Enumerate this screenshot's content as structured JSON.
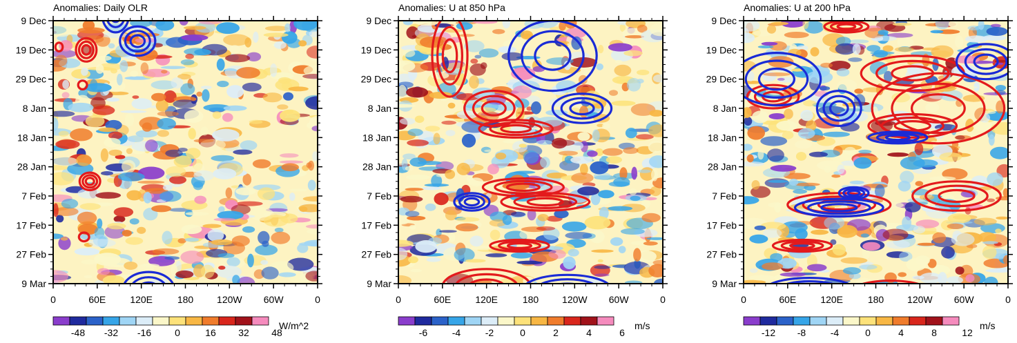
{
  "palette": [
    "#8a3dcc",
    "#1f2a9e",
    "#2b62c9",
    "#36a5e8",
    "#9fd5f5",
    "#dcedf8",
    "#fbf7c9",
    "#fde27a",
    "#f8b744",
    "#f07c2c",
    "#d9261c",
    "#a1121a",
    "#f58bbd"
  ],
  "contour_colors": {
    "positive": "#e31a1c",
    "negative": "#1a2bd6"
  },
  "chart_data": [
    {
      "type": "heatmap",
      "title": "Anomalies: Daily OLR",
      "x_ticks": [
        "0",
        "60E",
        "120E",
        "180",
        "120W",
        "60W",
        "0"
      ],
      "y_ticks": [
        "9 Dec",
        "19 Dec",
        "29 Dec",
        "8 Jan",
        "18 Jan",
        "28 Jan",
        "7 Feb",
        "17 Feb",
        "27 Feb",
        "9 Mar"
      ],
      "colorbar": {
        "units": "W/m^2",
        "labels": [
          "-48",
          "-32",
          "-16",
          "0",
          "16",
          "32",
          "48"
        ]
      },
      "field_seed": 11,
      "positive_contours": [
        {
          "lon": 45,
          "day": 10,
          "dlon": 14,
          "dday": 4
        },
        {
          "lon": 8,
          "day": 9,
          "dlon": 5,
          "dday": 1.5
        },
        {
          "lon": 40,
          "day": 22,
          "dlon": 6,
          "dday": 1.5
        },
        {
          "lon": 50,
          "day": 55,
          "dlon": 14,
          "dday": 3
        },
        {
          "lon": 42,
          "day": 74,
          "dlon": 7,
          "dday": 1.5
        }
      ],
      "negative_contours": [
        {
          "lon": 85,
          "day": -2,
          "dlon": 18,
          "dday": 6
        },
        {
          "lon": 115,
          "day": 7,
          "dlon": 24,
          "dday": 5
        },
        {
          "lon": 130,
          "day": 92,
          "dlon": 35,
          "dday": 6
        }
      ]
    },
    {
      "type": "heatmap",
      "title": "Anomalies: U at 850 hPa",
      "x_ticks": [
        "0",
        "60E",
        "120E",
        "180",
        "120W",
        "60W",
        "0"
      ],
      "y_ticks": [
        "9 Dec",
        "19 Dec",
        "29 Dec",
        "8 Jan",
        "18 Jan",
        "28 Jan",
        "7 Feb",
        "17 Feb",
        "27 Feb",
        "9 Mar"
      ],
      "colorbar": {
        "units": "m/s",
        "labels": [
          "-6",
          "-4",
          "-2",
          "0",
          "2",
          "4",
          "6"
        ]
      },
      "field_seed": 23,
      "positive_contours": [
        {
          "lon": 70,
          "day": 12,
          "dlon": 24,
          "dday": 14
        },
        {
          "lon": 130,
          "day": 30,
          "dlon": 40,
          "dday": 6
        },
        {
          "lon": 160,
          "day": 37,
          "dlon": 50,
          "dday": 3
        },
        {
          "lon": 170,
          "day": 57,
          "dlon": 55,
          "dday": 3
        },
        {
          "lon": 200,
          "day": 62,
          "dlon": 60,
          "dday": 3
        },
        {
          "lon": 165,
          "day": 77,
          "dlon": 40,
          "dday": 2
        },
        {
          "lon": 120,
          "day": 91,
          "dlon": 60,
          "dday": 6
        }
      ],
      "negative_contours": [
        {
          "lon": 210,
          "day": 12,
          "dlon": 60,
          "dday": 12
        },
        {
          "lon": 250,
          "day": 30,
          "dlon": 40,
          "dday": 5
        },
        {
          "lon": 100,
          "day": 62,
          "dlon": 24,
          "dday": 3
        },
        {
          "lon": 230,
          "day": 92,
          "dlon": 60,
          "dday": 5
        }
      ]
    },
    {
      "type": "heatmap",
      "title": "Anomalies: U at 200 hPa",
      "x_ticks": [
        "0",
        "60E",
        "120E",
        "180",
        "120W",
        "60W",
        "0"
      ],
      "y_ticks": [
        "9 Dec",
        "19 Dec",
        "29 Dec",
        "8 Jan",
        "18 Jan",
        "28 Jan",
        "7 Feb",
        "17 Feb",
        "27 Feb",
        "9 Mar"
      ],
      "colorbar": {
        "units": "m/s",
        "labels": [
          "-12",
          "-8",
          "-4",
          "0",
          "4",
          "8",
          "12"
        ]
      },
      "field_seed": 37,
      "positive_contours": [
        {
          "lon": 265,
          "day": 30,
          "dlon": 90,
          "dday": 12
        },
        {
          "lon": 230,
          "day": 18,
          "dlon": 70,
          "dday": 6
        },
        {
          "lon": 230,
          "day": 36,
          "dlon": 60,
          "dday": 4
        },
        {
          "lon": 40,
          "day": 26,
          "dlon": 35,
          "dday": 4
        },
        {
          "lon": 290,
          "day": 60,
          "dlon": 60,
          "dday": 5
        },
        {
          "lon": 130,
          "day": 63,
          "dlon": 70,
          "dday": 4
        },
        {
          "lon": 200,
          "day": 94,
          "dlon": 60,
          "dday": 5
        },
        {
          "lon": 80,
          "day": 77,
          "dlon": 40,
          "dday": 2
        },
        {
          "lon": 140,
          "day": 2,
          "dlon": 30,
          "dday": 2
        }
      ],
      "negative_contours": [
        {
          "lon": 45,
          "day": 20,
          "dlon": 60,
          "dday": 9
        },
        {
          "lon": 130,
          "day": 30,
          "dlon": 30,
          "dday": 6
        },
        {
          "lon": 210,
          "day": 40,
          "dlon": 40,
          "dday": 2
        },
        {
          "lon": 150,
          "day": 59,
          "dlon": 20,
          "dday": 2
        },
        {
          "lon": 130,
          "day": 64,
          "dlon": 60,
          "dday": 3
        },
        {
          "lon": 90,
          "day": 92,
          "dlon": 60,
          "dday": 4
        },
        {
          "lon": 330,
          "day": 14,
          "dlon": 40,
          "dday": 6
        }
      ]
    }
  ]
}
